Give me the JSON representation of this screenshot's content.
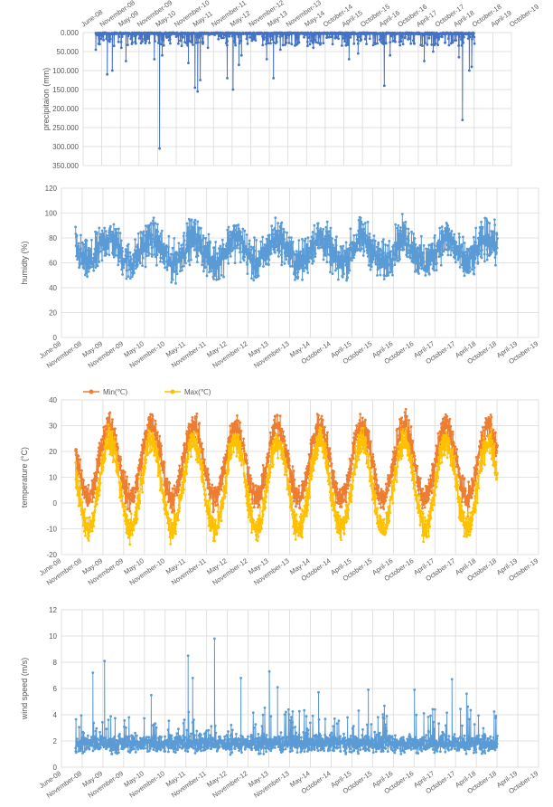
{
  "colors": {
    "precip": "#4472C4",
    "humidity": "#5B9BD5",
    "temp_min": "#ED7D31",
    "temp_max": "#FFC000",
    "wind": "#5B9BD5",
    "grid": "#D9D9D9",
    "axis_text": "#595959"
  },
  "chart_data": [
    {
      "id": "precipitation",
      "type": "line",
      "ylabel": "precipitaion (mm)",
      "xlabel": "",
      "y_reversed": true,
      "ylim": [
        0,
        350
      ],
      "yticks": [
        "0.000",
        "50.000",
        "100.000",
        "150.000",
        "200.000",
        "250.000",
        "300.000",
        "350.000"
      ],
      "x_tick_position": "top",
      "x_ticks": [
        "June-08",
        "November-08",
        "May-09",
        "November-09",
        "May-10",
        "November-10",
        "May-11",
        "November-11",
        "May-12",
        "November-12",
        "May-13",
        "November-13",
        "May-14",
        "October-14",
        "April-15",
        "October-15",
        "April-16",
        "October-16",
        "April-17",
        "October-17",
        "April-18",
        "October-18",
        "April-19",
        "October-19"
      ],
      "grid": true,
      "series": [
        {
          "x": [
            "2008-10-01",
            "2008-12-15",
            "2009-01-20",
            "2009-03-10",
            "2009-06-05",
            "2009-07-20",
            "2009-09-15",
            "2010-04-20",
            "2010-06-10",
            "2010-07-05",
            "2010-09-10",
            "2011-03-15",
            "2011-05-18",
            "2011-06-12",
            "2011-07-08",
            "2011-09-20",
            "2012-03-25",
            "2012-05-20",
            "2012-07-15",
            "2012-08-10",
            "2013-04-10",
            "2013-06-15",
            "2013-08-20",
            "2014-05-10",
            "2014-07-05",
            "2015-06-15",
            "2015-09-10",
            "2016-05-20",
            "2016-07-15",
            "2017-06-10",
            "2017-09-05",
            "2018-05-12",
            "2018-06-15",
            "2018-08-20",
            "2018-09-12"
          ],
          "values": [
            45,
            20,
            110,
            100,
            40,
            75,
            30,
            70,
            305,
            60,
            20,
            80,
            145,
            155,
            125,
            40,
            120,
            150,
            85,
            60,
            70,
            120,
            45,
            35,
            40,
            70,
            55,
            140,
            60,
            75,
            50,
            65,
            230,
            100,
            90
          ]
        }
      ]
    },
    {
      "id": "humidity",
      "type": "line",
      "ylabel": "humidty (%)",
      "xlabel": "",
      "ylim": [
        0,
        120
      ],
      "yticks": [
        "0",
        "20",
        "40",
        "60",
        "80",
        "100",
        "120"
      ],
      "x_ticks": [
        "June-08",
        "November-08",
        "May-09",
        "November-09",
        "May-10",
        "November-10",
        "May-11",
        "November-11",
        "May-12",
        "November-12",
        "May-13",
        "November-13",
        "May-14",
        "October-14",
        "April-15",
        "October-15",
        "April-16",
        "October-16",
        "April-17",
        "October-17",
        "April-18",
        "October-18",
        "April-19",
        "October-19"
      ],
      "grid": true,
      "series": [
        {
          "x_range": [
            "2008-10-01",
            "2018-10-10"
          ],
          "mean": 70,
          "amplitude": 16,
          "noise": 12,
          "annual_min_low": 35,
          "annual_max_high": 100
        }
      ]
    },
    {
      "id": "temperature",
      "type": "line",
      "ylabel": "temperature (°C)",
      "xlabel": "",
      "ylim": [
        -20,
        40
      ],
      "yticks": [
        "-20",
        "-10",
        "0",
        "10",
        "20",
        "30",
        "40"
      ],
      "legend_position": "top-left",
      "x_ticks": [
        "June-08",
        "November-08",
        "May-09",
        "November-09",
        "May-10",
        "November-10",
        "May-11",
        "November-11",
        "May-12",
        "November-12",
        "May-13",
        "November-13",
        "May-14",
        "October-14",
        "April-15",
        "October-15",
        "April-16",
        "October-16",
        "April-17",
        "October-17",
        "April-18",
        "October-18",
        "April-19",
        "October-19"
      ],
      "grid": true,
      "series": [
        {
          "name": "Min(℃)",
          "x_range": [
            "2008-10-01",
            "2018-10-10"
          ],
          "mean": 16,
          "amplitude": 14,
          "noise": 4
        },
        {
          "name": "Max(℃)",
          "x_range": [
            "2008-10-01",
            "2018-10-10"
          ],
          "mean": 7,
          "amplitude": 17,
          "noise": 4
        }
      ]
    },
    {
      "id": "wind",
      "type": "line",
      "ylabel": "wind speed (m/s)",
      "xlabel": "",
      "ylim": [
        0,
        12
      ],
      "yticks": [
        "0",
        "2",
        "4",
        "6",
        "8",
        "10",
        "12"
      ],
      "x_ticks": [
        "June-08",
        "November-08",
        "May-09",
        "November-09",
        "May-10",
        "November-10",
        "May-11",
        "November-11",
        "May-12",
        "November-12",
        "May-13",
        "November-13",
        "May-14",
        "October-14",
        "April-15",
        "October-15",
        "April-16",
        "October-16",
        "April-17",
        "October-17",
        "April-18",
        "October-18",
        "April-19",
        "October-19"
      ],
      "grid": true,
      "series": [
        {
          "x_range": [
            "2008-10-01",
            "2018-10-10"
          ],
          "base": 1.8,
          "peaks_x": [
            "2009-03-01",
            "2009-06-10",
            "2010-07-20",
            "2011-06-05",
            "2011-07-15",
            "2012-01-20",
            "2012-09-05",
            "2013-05-10",
            "2013-07-20",
            "2014-07-10",
            "2015-09-15",
            "2016-10-20",
            "2017-09-10",
            "2018-01-15"
          ],
          "peaks_values": [
            7.2,
            8.1,
            5.5,
            8.5,
            6.8,
            9.8,
            6.8,
            7.3,
            6.1,
            5.7,
            5.9,
            5.9,
            6.7,
            5.6
          ]
        }
      ]
    }
  ]
}
